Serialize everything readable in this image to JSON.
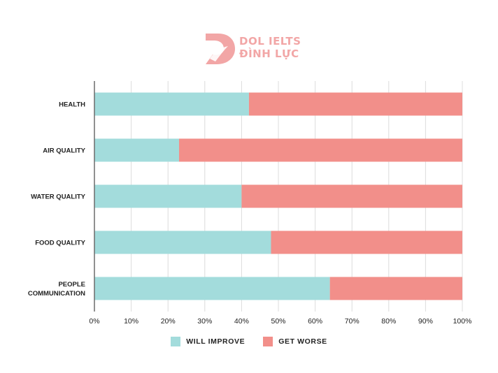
{
  "logo": {
    "line1": "DOL IELTS",
    "line2": "ĐÌNH LỰC",
    "color": "#f2a6a6"
  },
  "chart_data": {
    "type": "bar",
    "orientation": "horizontal",
    "stacked": true,
    "categories": [
      "HEALTH",
      "AIR QUALITY",
      "WATER QUALITY",
      "FOOD QUALITY",
      "PEOPLE COMMUNICATION"
    ],
    "series": [
      {
        "name": "WILL IMPROVE",
        "color": "#a3dcdc",
        "values": [
          42,
          23,
          40,
          48,
          64
        ]
      },
      {
        "name": "GET WORSE",
        "color": "#f28f8a",
        "values": [
          58,
          77,
          60,
          52,
          36
        ]
      }
    ],
    "xlim": [
      0,
      100
    ],
    "x_ticks": [
      "0%",
      "10%",
      "20%",
      "30%",
      "40%",
      "50%",
      "60%",
      "70%",
      "80%",
      "90%",
      "100%"
    ],
    "grid": true,
    "legend_position": "bottom"
  }
}
